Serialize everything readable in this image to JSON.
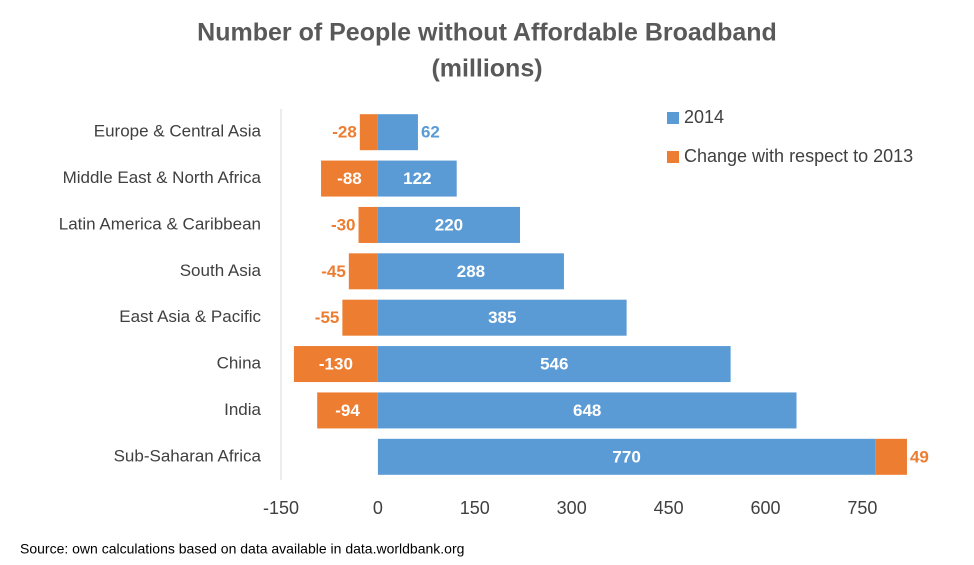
{
  "chart_data": {
    "type": "bar",
    "orientation": "horizontal",
    "stacked": true,
    "title": "Number of People without Affordable Broadband",
    "subtitle": "(millions)",
    "categories": [
      "Europe & Central Asia",
      "Middle East & North Africa",
      "Latin America & Caribbean",
      "South Asia",
      "East Asia & Pacific",
      "China",
      "India",
      "Sub-Saharan Africa"
    ],
    "series": [
      {
        "name": "2014",
        "color": "#5b9bd5",
        "values": [
          62,
          122,
          220,
          288,
          385,
          546,
          648,
          770
        ]
      },
      {
        "name": "Change with respect to 2013",
        "color": "#ed7d31",
        "values": [
          -28,
          -88,
          -30,
          -45,
          -55,
          -130,
          -94,
          49
        ]
      }
    ],
    "xlim": [
      -150,
      850
    ],
    "xticks": [
      -150,
      0,
      150,
      300,
      450,
      600,
      750
    ],
    "legend": "top-right",
    "grid": false,
    "source": "Source: own calculations based on data available in data.worldbank.org"
  }
}
